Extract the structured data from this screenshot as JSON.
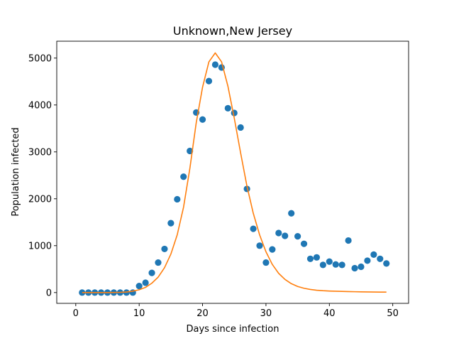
{
  "chart_data": {
    "type": "scatter",
    "title": "Unknown,New Jersey",
    "xlabel": "Days since infection",
    "ylabel": "Population infected",
    "xlim": [
      -3.0,
      52.5
    ],
    "ylim": [
      -230,
      5360
    ],
    "xticks": [
      0,
      10,
      20,
      30,
      40,
      50
    ],
    "yticks": [
      0,
      1000,
      2000,
      3000,
      4000,
      5000
    ],
    "grid": false,
    "series": [
      {
        "kind": "scatter",
        "color": "#1f77b4",
        "x": [
          1,
          2,
          3,
          4,
          5,
          6,
          7,
          8,
          9,
          10,
          11,
          12,
          13,
          14,
          15,
          16,
          17,
          18,
          19,
          20,
          21,
          22,
          23,
          24,
          25,
          26,
          27,
          28,
          29,
          30,
          31,
          32,
          33,
          34,
          35,
          36,
          37,
          38,
          39,
          40,
          41,
          42,
          43,
          44,
          45,
          46,
          47,
          48,
          49
        ],
        "y": [
          0,
          0,
          0,
          0,
          0,
          0,
          0,
          0,
          0,
          140,
          210,
          420,
          640,
          930,
          1480,
          1990,
          2470,
          3020,
          3840,
          3690,
          4510,
          4860,
          4800,
          3930,
          3830,
          3520,
          2210,
          1360,
          1000,
          640,
          920,
          1270,
          1210,
          1690,
          1200,
          1040,
          720,
          750,
          590,
          660,
          600,
          590,
          1110,
          520,
          550,
          680,
          810,
          720,
          620
        ]
      },
      {
        "kind": "line",
        "color": "#ff7f0e",
        "x": [
          1,
          2,
          3,
          4,
          5,
          6,
          7,
          8,
          9,
          10,
          11,
          12,
          13,
          14,
          15,
          16,
          17,
          18,
          19,
          20,
          21,
          22,
          23,
          24,
          25,
          26,
          27,
          28,
          29,
          30,
          31,
          32,
          33,
          34,
          35,
          36,
          37,
          38,
          39,
          40,
          41,
          42,
          43,
          44,
          45,
          46,
          47,
          48,
          49
        ],
        "y": [
          0,
          0,
          0,
          0,
          0,
          2,
          5,
          12,
          30,
          60,
          110,
          200,
          330,
          530,
          820,
          1230,
          1820,
          2650,
          3620,
          4380,
          4920,
          5110,
          4920,
          4400,
          3720,
          2980,
          2270,
          1690,
          1230,
          870,
          600,
          410,
          280,
          190,
          130,
          92,
          66,
          50,
          40,
          33,
          28,
          24,
          21,
          18,
          15,
          13,
          11,
          10,
          9
        ]
      }
    ]
  }
}
